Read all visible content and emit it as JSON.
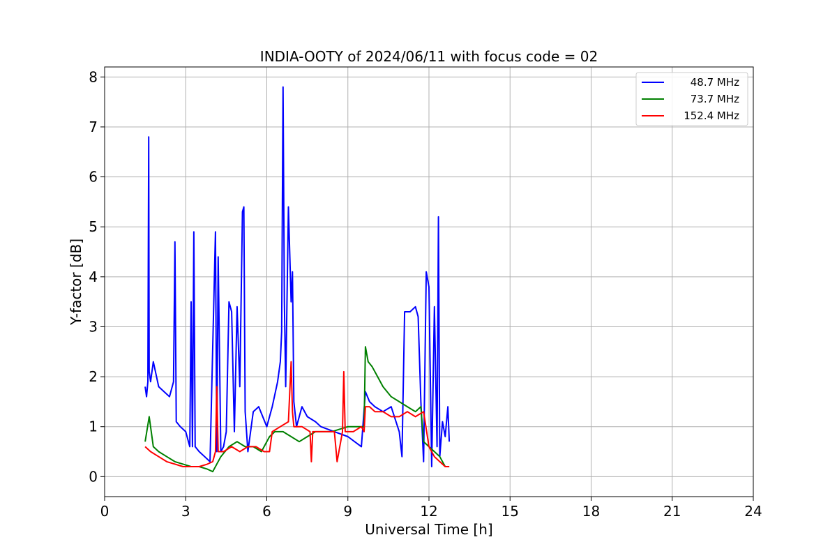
{
  "chart_data": {
    "type": "line",
    "title": "INDIA-OOTY of 2024/06/11 with focus code = 02",
    "xlabel": "Universal Time [h]",
    "ylabel": "Y-factor [dB]",
    "xlim": [
      0,
      24
    ],
    "ylim": [
      -0.4,
      8.2
    ],
    "xticks": [
      0,
      3,
      6,
      9,
      12,
      15,
      18,
      21,
      24
    ],
    "xtick_labels": [
      "0",
      "3",
      "6",
      "9",
      "12",
      "15",
      "18",
      "21",
      "24"
    ],
    "yticks": [
      0,
      1,
      2,
      3,
      4,
      5,
      6,
      7,
      8
    ],
    "ytick_labels": [
      "0",
      "1",
      "2",
      "3",
      "4",
      "5",
      "6",
      "7",
      "8"
    ],
    "grid": true,
    "legend_position": "top-right",
    "series": [
      {
        "name": "48.7 MHz",
        "color": "#0000ff",
        "x": [
          1.5,
          1.55,
          1.6,
          1.63,
          1.65,
          1.7,
          1.8,
          2.0,
          2.2,
          2.4,
          2.55,
          2.6,
          2.65,
          2.8,
          3.0,
          3.15,
          3.2,
          3.25,
          3.3,
          3.35,
          3.5,
          3.7,
          3.9,
          4.1,
          4.15,
          4.2,
          4.3,
          4.4,
          4.5,
          4.6,
          4.7,
          4.8,
          4.9,
          5.0,
          5.1,
          5.15,
          5.2,
          5.3,
          5.5,
          5.7,
          6.0,
          6.2,
          6.4,
          6.5,
          6.55,
          6.6,
          6.65,
          6.7,
          6.8,
          6.9,
          6.95,
          7.0,
          7.1,
          7.3,
          7.5,
          7.8,
          8.0,
          8.5,
          9.0,
          9.5,
          9.65,
          9.8,
          10.0,
          10.3,
          10.6,
          10.9,
          11.0,
          11.1,
          11.3,
          11.5,
          11.6,
          11.7,
          11.8,
          11.9,
          12.0,
          12.1,
          12.2,
          12.3,
          12.35,
          12.4,
          12.5,
          12.6,
          12.7,
          12.75
        ],
        "values": [
          1.8,
          1.6,
          1.9,
          6.8,
          2.1,
          1.9,
          2.3,
          1.8,
          1.7,
          1.6,
          1.9,
          4.7,
          1.1,
          1.0,
          0.9,
          0.6,
          3.5,
          0.6,
          4.9,
          0.6,
          0.5,
          0.4,
          0.3,
          4.9,
          0.5,
          4.4,
          0.5,
          0.6,
          0.9,
          3.5,
          3.3,
          0.9,
          3.4,
          1.8,
          5.3,
          5.4,
          1.3,
          0.5,
          1.3,
          1.4,
          1.0,
          1.4,
          1.9,
          2.3,
          2.9,
          7.8,
          3.5,
          1.8,
          5.4,
          3.5,
          4.1,
          1.5,
          1.0,
          1.4,
          1.2,
          1.1,
          1.0,
          0.9,
          0.8,
          0.6,
          1.7,
          1.5,
          1.4,
          1.3,
          1.4,
          0.9,
          0.4,
          3.3,
          3.3,
          3.4,
          3.2,
          1.5,
          0.3,
          4.1,
          3.8,
          0.2,
          3.4,
          0.6,
          5.2,
          0.4,
          1.1,
          0.8,
          1.4,
          0.7
        ]
      },
      {
        "name": "73.7 MHz",
        "color": "#008000",
        "x": [
          1.5,
          1.65,
          1.8,
          2.0,
          2.3,
          2.6,
          2.9,
          3.2,
          3.5,
          3.8,
          4.0,
          4.3,
          4.6,
          4.9,
          5.2,
          5.5,
          5.8,
          6.1,
          6.3,
          6.6,
          6.9,
          7.2,
          7.5,
          7.8,
          8.1,
          8.4,
          8.7,
          9.0,
          9.3,
          9.6,
          9.65,
          9.75,
          9.9,
          10.1,
          10.3,
          10.6,
          10.9,
          11.2,
          11.5,
          11.7,
          11.8,
          12.0,
          12.2,
          12.4,
          12.6,
          12.75
        ],
        "values": [
          0.7,
          1.2,
          0.6,
          0.5,
          0.4,
          0.3,
          0.25,
          0.2,
          0.2,
          0.15,
          0.1,
          0.4,
          0.6,
          0.7,
          0.6,
          0.6,
          0.5,
          0.8,
          0.9,
          0.9,
          0.8,
          0.7,
          0.8,
          0.9,
          0.9,
          0.9,
          0.95,
          1.0,
          1.0,
          1.0,
          2.6,
          2.3,
          2.2,
          2.0,
          1.8,
          1.6,
          1.5,
          1.4,
          1.3,
          1.4,
          0.7,
          0.6,
          0.5,
          0.4,
          0.2,
          0.2
        ]
      },
      {
        "name": "152.4 MHz",
        "color": "#ff0000",
        "x": [
          1.5,
          1.7,
          2.0,
          2.3,
          2.6,
          2.9,
          3.2,
          3.5,
          3.8,
          4.0,
          4.1,
          4.15,
          4.2,
          4.4,
          4.7,
          5.0,
          5.3,
          5.6,
          5.9,
          6.1,
          6.2,
          6.5,
          6.8,
          6.9,
          6.95,
          7.0,
          7.3,
          7.6,
          7.65,
          7.7,
          8.0,
          8.3,
          8.5,
          8.6,
          8.8,
          8.85,
          8.9,
          9.2,
          9.5,
          9.6,
          9.65,
          9.8,
          10.0,
          10.3,
          10.6,
          10.9,
          11.2,
          11.5,
          11.8,
          12.0,
          12.2,
          12.4,
          12.6,
          12.75
        ],
        "values": [
          0.6,
          0.5,
          0.4,
          0.3,
          0.25,
          0.2,
          0.2,
          0.2,
          0.25,
          0.3,
          0.5,
          1.8,
          0.5,
          0.5,
          0.6,
          0.5,
          0.6,
          0.6,
          0.5,
          0.5,
          0.9,
          1.0,
          1.1,
          2.3,
          1.3,
          1.0,
          1.0,
          0.9,
          0.3,
          0.9,
          0.9,
          0.9,
          0.9,
          0.3,
          0.9,
          2.1,
          0.9,
          0.9,
          1.0,
          0.9,
          1.4,
          1.4,
          1.3,
          1.3,
          1.2,
          1.2,
          1.3,
          1.2,
          1.3,
          0.6,
          0.4,
          0.3,
          0.2,
          0.2
        ]
      }
    ]
  }
}
